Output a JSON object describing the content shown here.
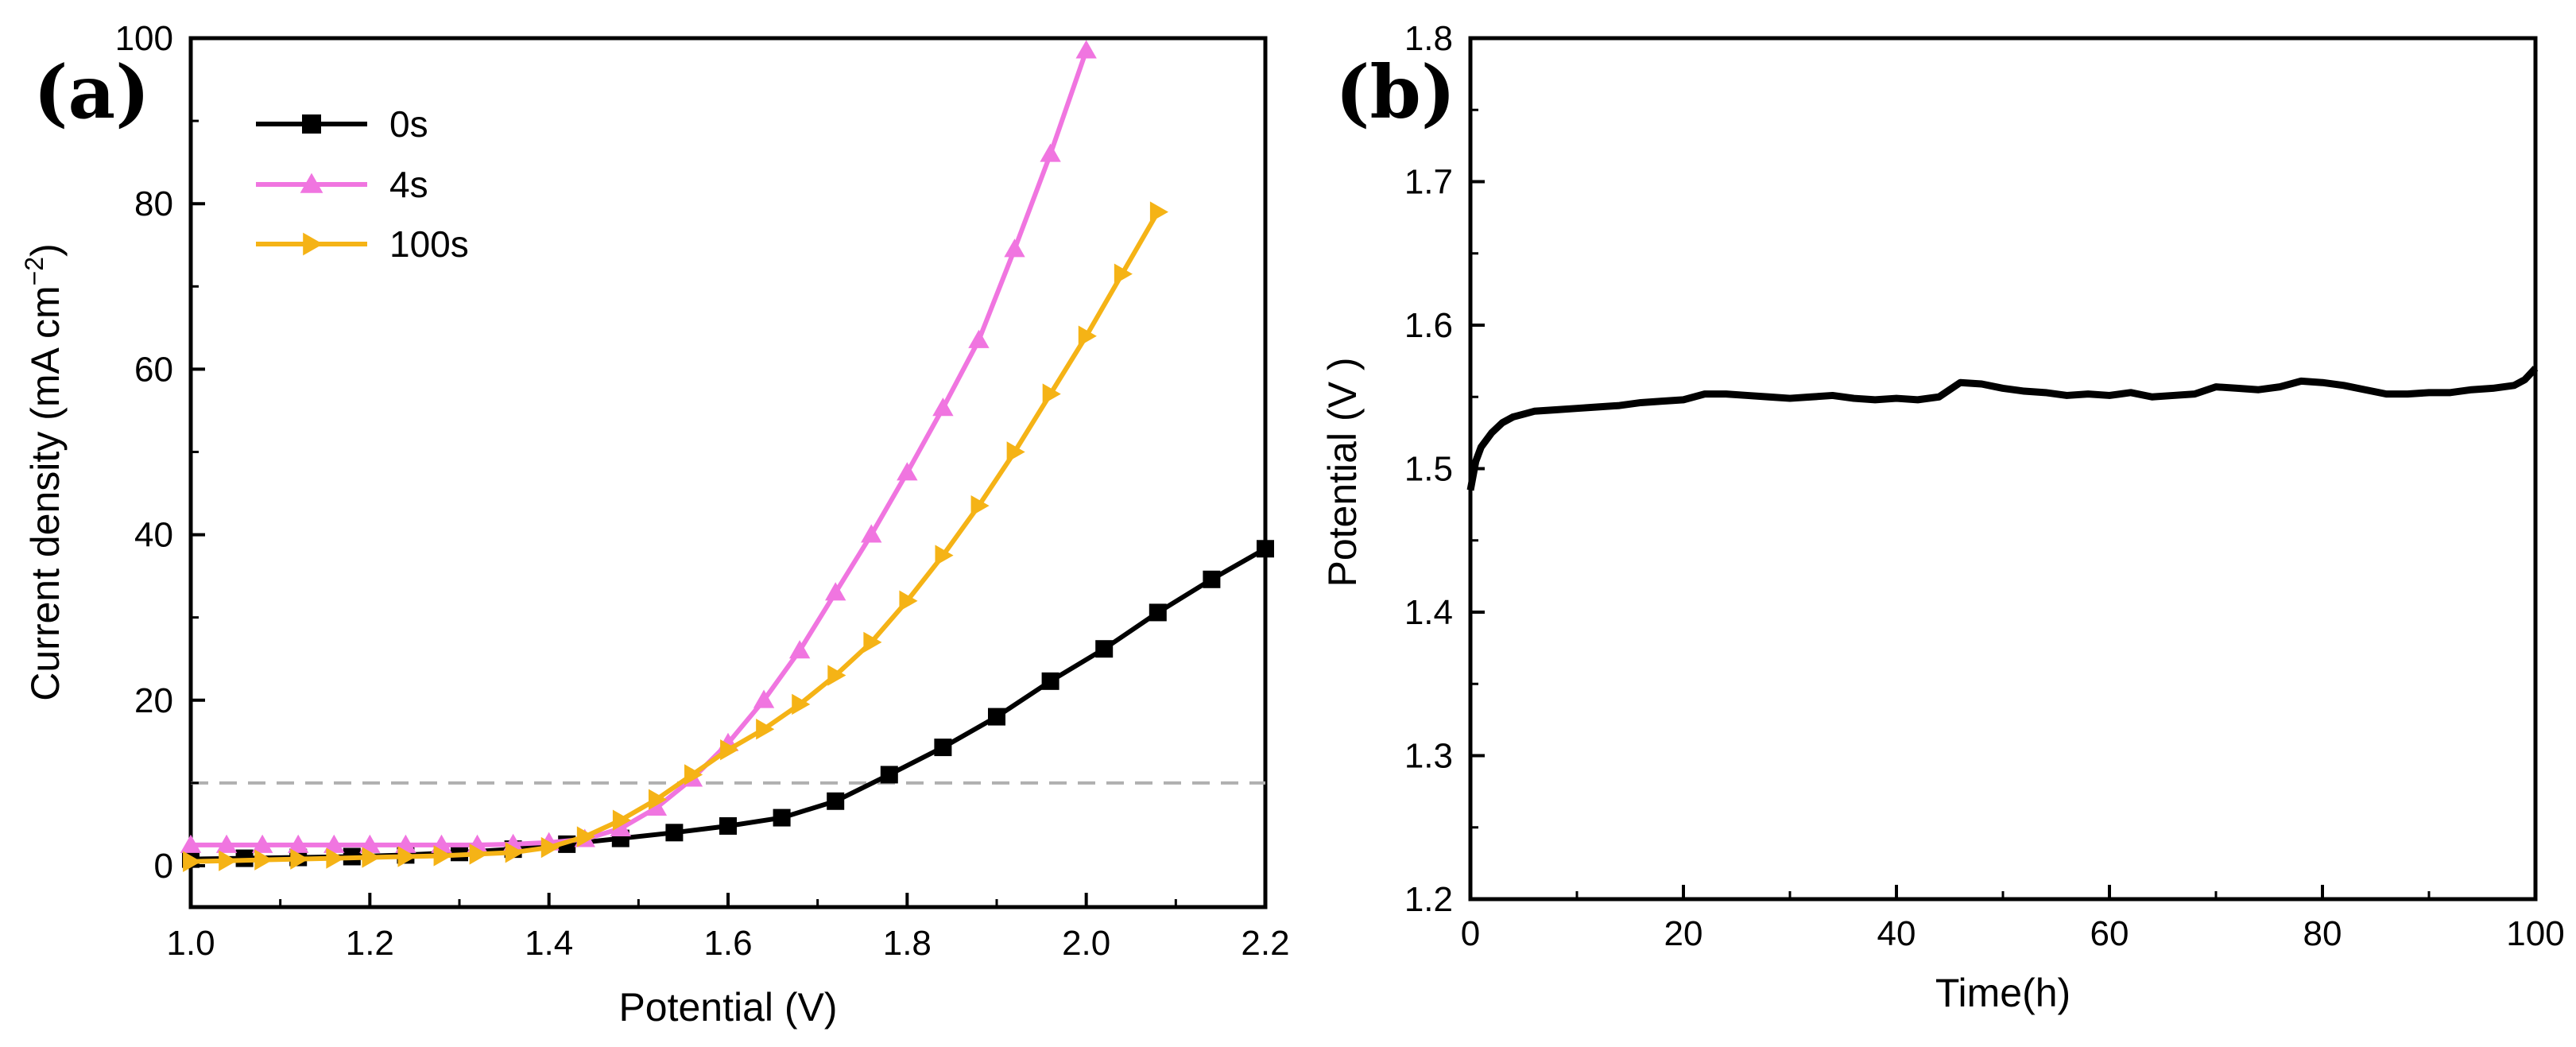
{
  "chart_data": [
    {
      "panel": "(a)",
      "type": "line",
      "title": "",
      "xlabel": "Potential (V)",
      "ylabel": "Current density (mA cm",
      "ylabel_sup": "−2",
      "ylabel_suffix": ")",
      "xlim": [
        1.0,
        2.2
      ],
      "ylim": [
        -5,
        100
      ],
      "xticks": [
        1.0,
        1.2,
        1.4,
        1.6,
        1.8,
        2.0,
        2.2
      ],
      "xtick_labels": [
        "1.0",
        "1.2",
        "1.4",
        "1.6",
        "1.8",
        "2.0",
        "2.2"
      ],
      "yticks": [
        0,
        20,
        40,
        60,
        80,
        100
      ],
      "ytick_labels": [
        "0",
        "20",
        "40",
        "60",
        "80",
        "100"
      ],
      "reference_line": {
        "y": 10,
        "style": "dashed",
        "color": "#b0b0b0"
      },
      "legend_position": "top-left",
      "series": [
        {
          "name": "0s",
          "color": "#000000",
          "marker": "square",
          "x": [
            1.0,
            1.06,
            1.12,
            1.18,
            1.24,
            1.3,
            1.36,
            1.42,
            1.48,
            1.54,
            1.6,
            1.66,
            1.72,
            1.78,
            1.84,
            1.9,
            1.96,
            2.02,
            2.08,
            2.14,
            2.2
          ],
          "y": [
            0.8,
            0.9,
            1.0,
            1.1,
            1.3,
            1.6,
            2.0,
            2.6,
            3.3,
            4.0,
            4.8,
            5.8,
            7.8,
            11.0,
            14.3,
            18.0,
            22.3,
            26.2,
            30.6,
            34.6,
            38.3
          ]
        },
        {
          "name": "4s",
          "color": "#f075e0",
          "marker": "triangle-up",
          "x": [
            1.0,
            1.04,
            1.08,
            1.12,
            1.16,
            1.2,
            1.24,
            1.28,
            1.32,
            1.36,
            1.4,
            1.44,
            1.48,
            1.52,
            1.56,
            1.6,
            1.64,
            1.68,
            1.72,
            1.76,
            1.8,
            1.84,
            1.88,
            1.92,
            1.96,
            2.0
          ],
          "y": [
            2.5,
            2.5,
            2.5,
            2.5,
            2.5,
            2.5,
            2.5,
            2.5,
            2.5,
            2.6,
            2.8,
            3.2,
            4.5,
            7.0,
            10.5,
            14.8,
            20.0,
            26.0,
            33.0,
            40.0,
            47.5,
            55.3,
            63.5,
            74.5,
            86.0,
            98.5
          ]
        },
        {
          "name": "100s",
          "color": "#f5b316",
          "marker": "triangle-right",
          "x": [
            1.0,
            1.04,
            1.08,
            1.12,
            1.16,
            1.2,
            1.24,
            1.28,
            1.32,
            1.36,
            1.4,
            1.44,
            1.48,
            1.52,
            1.56,
            1.6,
            1.64,
            1.68,
            1.72,
            1.76,
            1.8,
            1.84,
            1.88,
            1.92,
            1.96,
            2.0,
            2.04,
            2.08
          ],
          "y": [
            0.5,
            0.6,
            0.7,
            0.8,
            0.9,
            1.0,
            1.1,
            1.2,
            1.4,
            1.6,
            2.2,
            3.5,
            5.5,
            8.0,
            11.0,
            14.0,
            16.5,
            19.5,
            23.0,
            27.0,
            32.0,
            37.5,
            43.5,
            50.0,
            57.0,
            64.0,
            71.5,
            79.0
          ]
        }
      ]
    },
    {
      "panel": "(b)",
      "type": "line",
      "title": "",
      "xlabel": "Time(h)",
      "ylabel": "Potential (V )",
      "xlim": [
        0,
        100
      ],
      "ylim": [
        1.2,
        1.8
      ],
      "xticks": [
        0,
        20,
        40,
        60,
        80,
        100
      ],
      "xtick_labels": [
        "0",
        "20",
        "40",
        "60",
        "80",
        "100"
      ],
      "yticks": [
        1.2,
        1.3,
        1.4,
        1.5,
        1.6,
        1.7,
        1.8
      ],
      "ytick_labels": [
        "1.2",
        "1.3",
        "1.4",
        "1.5",
        "1.6",
        "1.7",
        "1.8"
      ],
      "series": [
        {
          "name": "",
          "color": "#000000",
          "x": [
            0,
            0.5,
            1,
            2,
            3,
            4,
            5,
            6,
            8,
            10,
            12,
            14,
            16,
            18,
            20,
            22,
            24,
            26,
            28,
            30,
            32,
            34,
            36,
            38,
            40,
            42,
            44,
            46,
            48,
            50,
            52,
            54,
            56,
            58,
            60,
            62,
            64,
            66,
            68,
            70,
            72,
            74,
            76,
            78,
            80,
            82,
            84,
            86,
            88,
            90,
            92,
            94,
            96,
            98,
            99,
            100
          ],
          "y": [
            1.485,
            1.505,
            1.515,
            1.525,
            1.532,
            1.536,
            1.538,
            1.54,
            1.541,
            1.542,
            1.543,
            1.544,
            1.546,
            1.547,
            1.548,
            1.552,
            1.552,
            1.551,
            1.55,
            1.549,
            1.55,
            1.551,
            1.549,
            1.548,
            1.549,
            1.548,
            1.55,
            1.56,
            1.559,
            1.556,
            1.554,
            1.553,
            1.551,
            1.552,
            1.551,
            1.553,
            1.55,
            1.551,
            1.552,
            1.557,
            1.556,
            1.555,
            1.557,
            1.561,
            1.56,
            1.558,
            1.555,
            1.552,
            1.552,
            1.553,
            1.553,
            1.555,
            1.556,
            1.558,
            1.562,
            1.57
          ]
        }
      ]
    }
  ]
}
